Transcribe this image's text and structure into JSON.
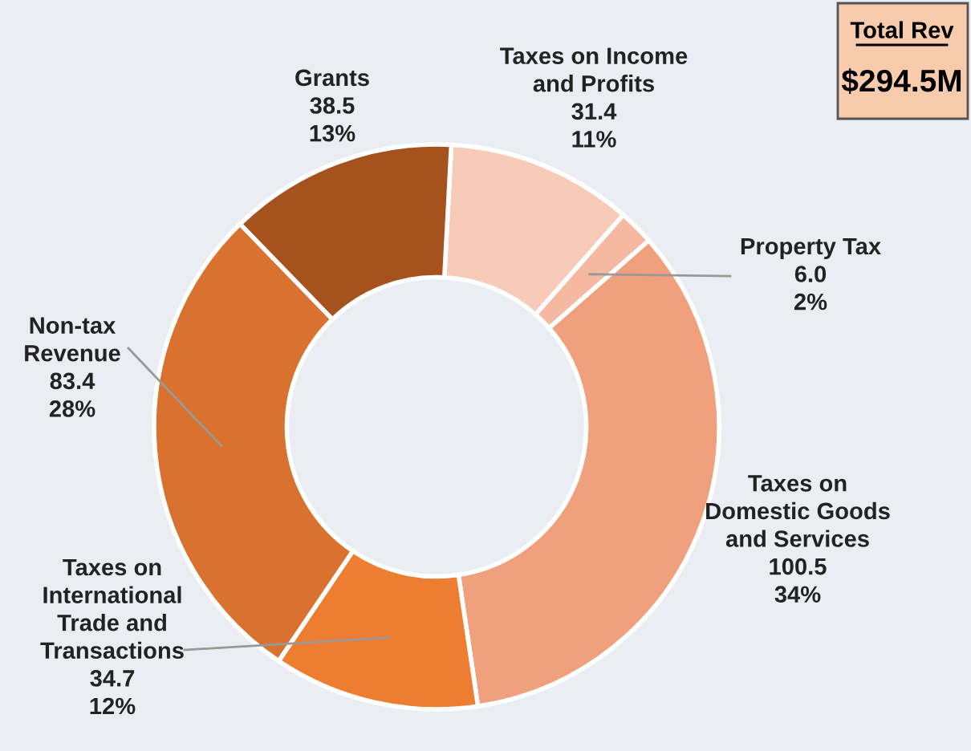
{
  "chart_data": {
    "type": "donut",
    "categories": [
      "Taxes on Income\nand Profits",
      "Property Tax",
      "Taxes on\nDomestic Goods\nand Services",
      "Taxes on\nInternational\nTrade and\nTransactions",
      "Non-tax\nRevenue",
      "Grants"
    ],
    "values": [
      31.4,
      6.0,
      100.5,
      34.7,
      83.4,
      38.5
    ],
    "value_labels": [
      "31.4\n11%",
      "6.0\n2%",
      "100.5\n34%",
      "34.7\n12%",
      "83.4\n28%",
      "38.5\n13%"
    ],
    "colors": [
      "#f8cbb9",
      "#f4b9a0",
      "#f0a07c",
      "#ed7d31",
      "#d9722e",
      "#a5521f"
    ],
    "annotations": [
      "Total Rev",
      "$294.5M"
    ],
    "legend": false
  }
}
